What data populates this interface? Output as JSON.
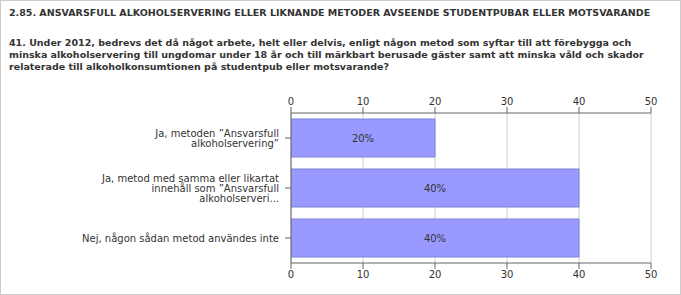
{
  "chart_data": {
    "type": "bar",
    "orientation": "horizontal",
    "title": "2.85. ANSVARSFULL ALKOHOLSERVERING ELLER LIKNANDE METODER AVSEENDE STUDENTPUBAR ELLER MOTSVARANDE",
    "subtitle": "41. Under 2012, bedrevs det då något arbete, helt eller delvis, enligt någon metod som syftar till att förebygga och minska alkoholservering till ungdomar under 18 år och till märkbart berusade gäster samt att minska våld och skador relaterade till alkoholkonsumtionen på studentpub eller motsvarande?",
    "categories": [
      "Ja, metoden ”Ansvarsfull alkoholservering”",
      "Ja, metod med samma eller likartat innehåll som ”Ansvarsfull alkoholserveri...",
      "Nej, någon sådan metod användes inte"
    ],
    "values": [
      20,
      40,
      40
    ],
    "value_labels": [
      "20%",
      "40%",
      "40%"
    ],
    "data_labels": true,
    "color": "#9999ff",
    "xlim": [
      0,
      50
    ],
    "xticks": [
      0,
      10,
      20,
      30,
      40,
      50
    ],
    "grid": true
  }
}
